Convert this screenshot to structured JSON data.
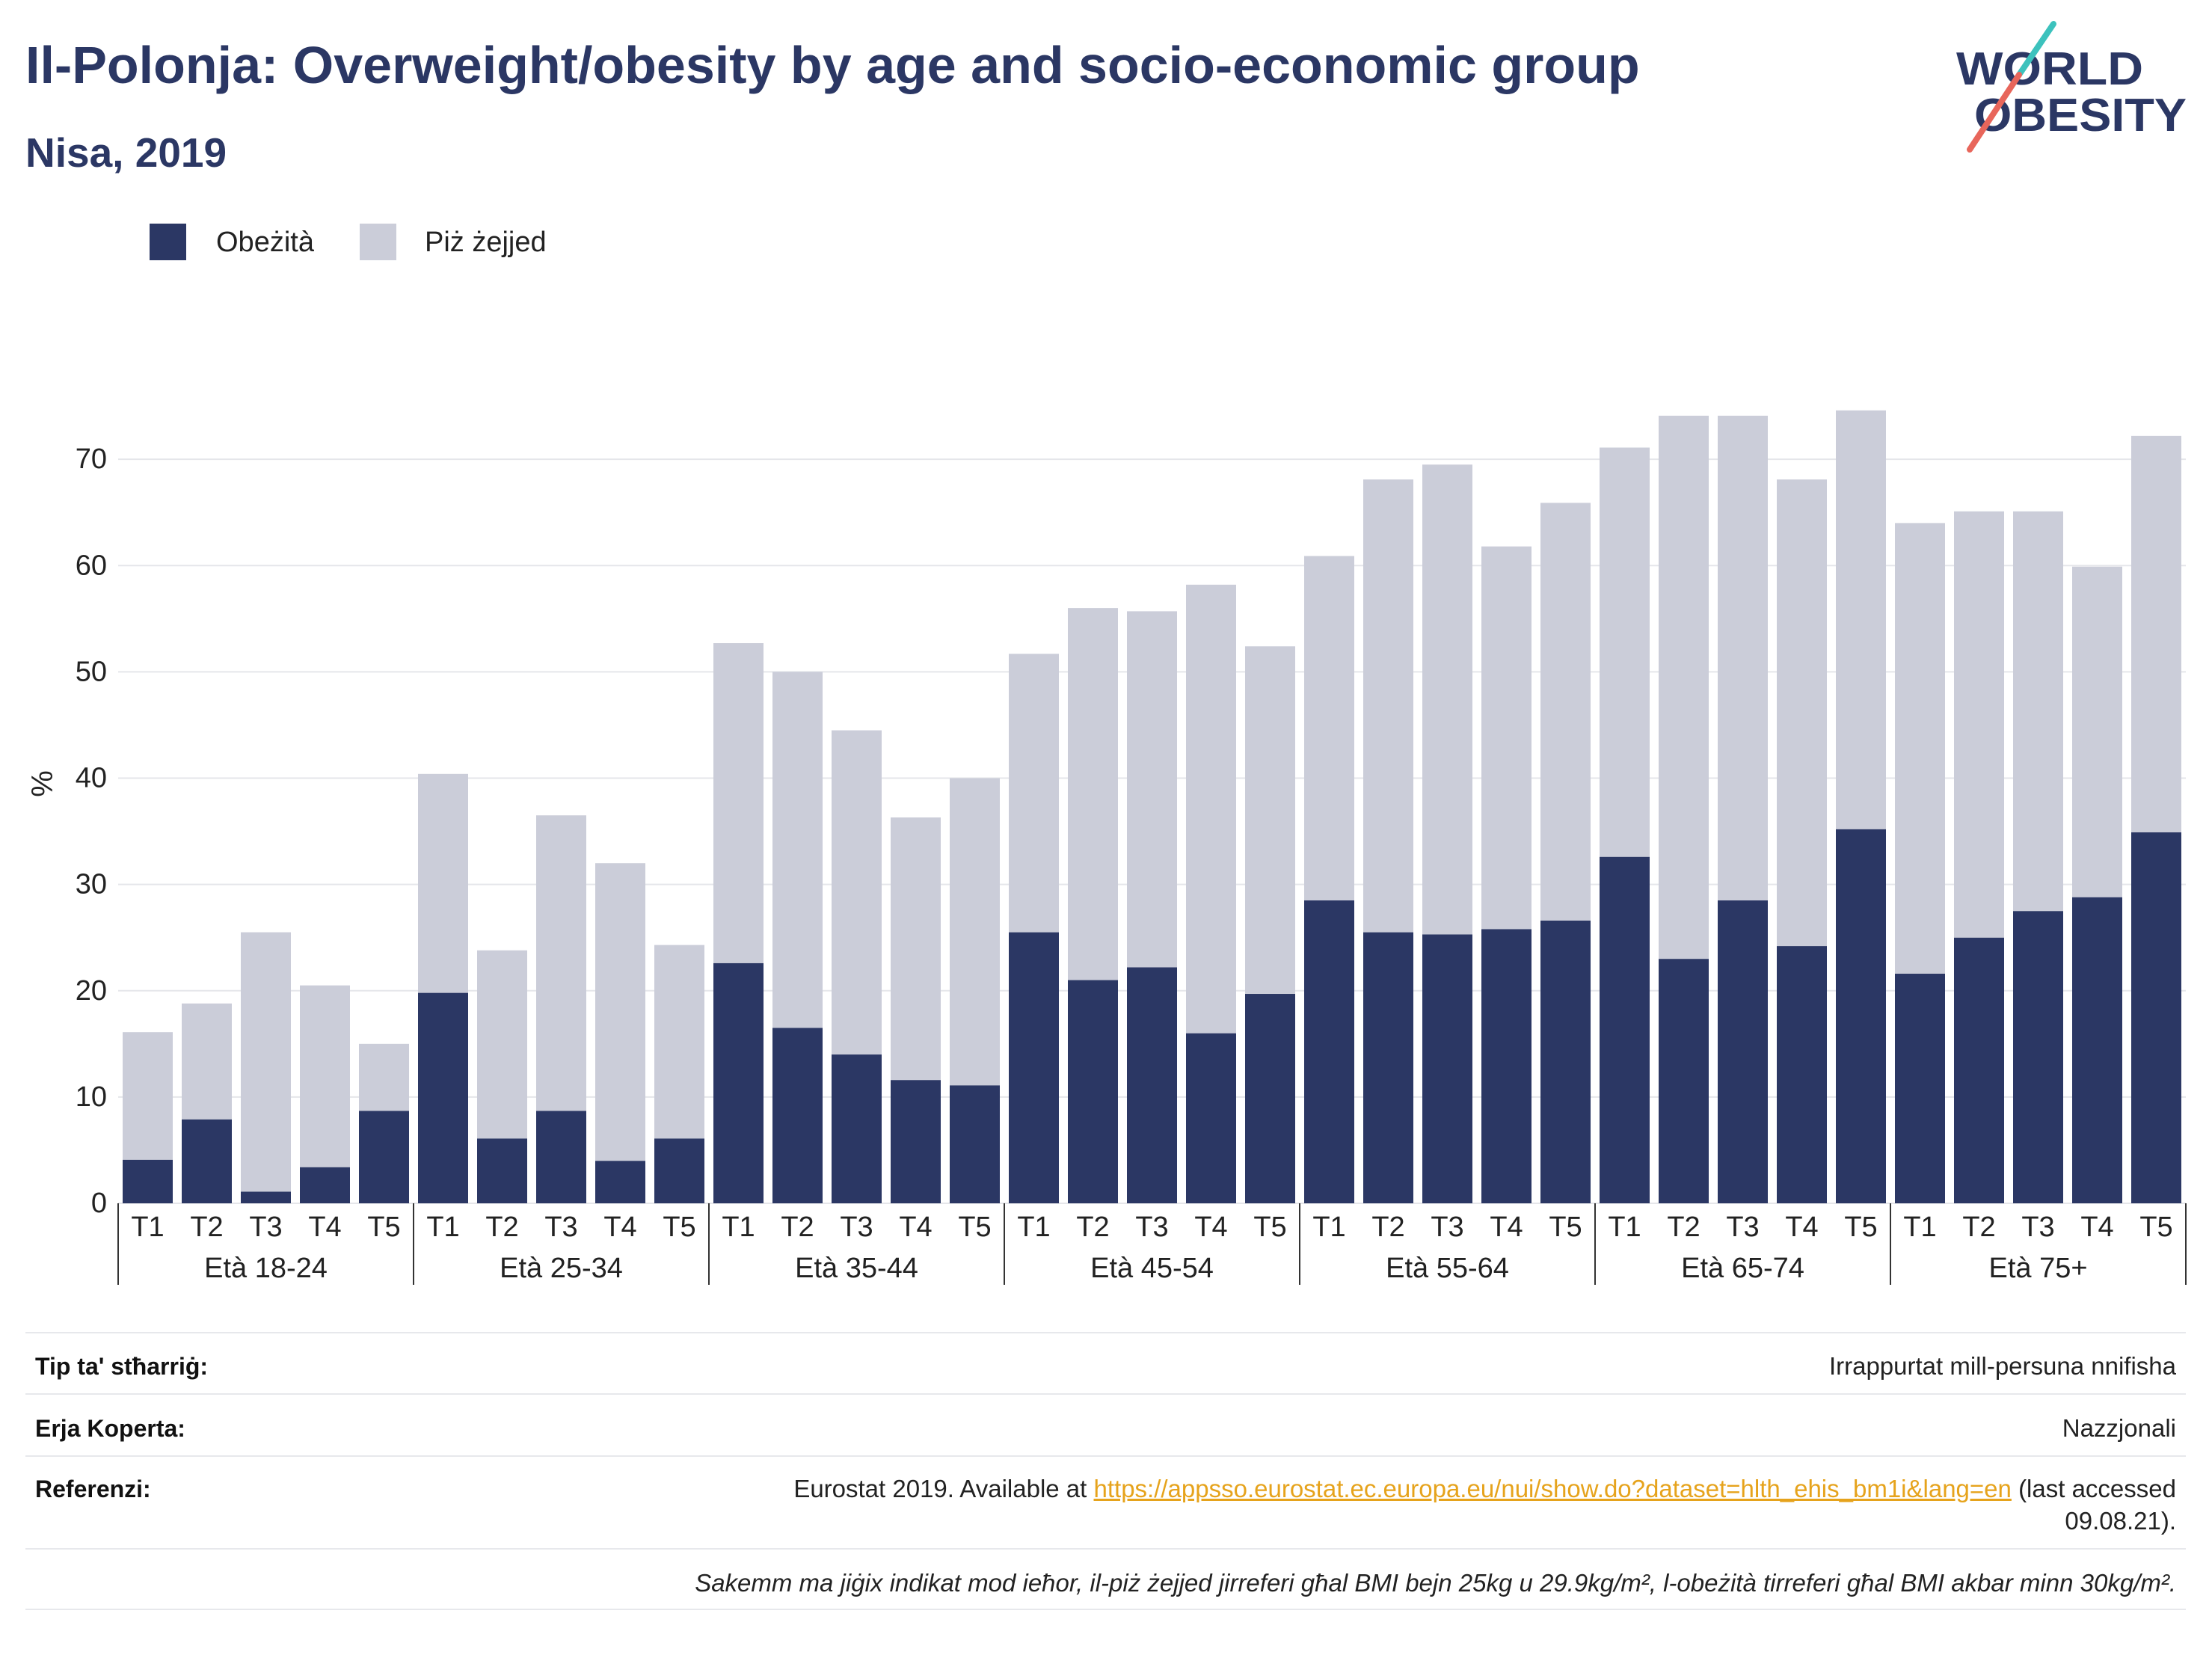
{
  "logo": {
    "line1": "WORLD",
    "line2": "OBESITY"
  },
  "colors": {
    "navy": "#2b3764",
    "gray": "#cbcdd9",
    "link": "#e6a31c",
    "logo_slash_top": "#3cc2bd",
    "logo_slash_bottom": "#e8665b"
  },
  "chart_data": {
    "type": "bar",
    "stacked": true,
    "title": "Il-Polonja: Overweight/obesity by age and socio-economic group",
    "subtitle": "Nisa, 2019",
    "xlabel": "",
    "ylabel": "%",
    "ylim": [
      0,
      80
    ],
    "yticks": [
      0,
      10,
      20,
      30,
      40,
      50,
      60,
      70
    ],
    "grid": true,
    "legend": "top-left",
    "groups": [
      "Età 18-24",
      "Età 25-34",
      "Età 35-44",
      "Età 45-54",
      "Età 55-64",
      "Età 65-74",
      "Età 75+"
    ],
    "categories": [
      "T1",
      "T2",
      "T3",
      "T4",
      "T5"
    ],
    "series": [
      {
        "name": "Obeżità",
        "color": "#2b3764",
        "values": [
          [
            4.1,
            7.9,
            1.1,
            3.4,
            8.7
          ],
          [
            19.8,
            6.1,
            8.7,
            4.0,
            6.1
          ],
          [
            22.6,
            16.5,
            14.0,
            11.6,
            11.1
          ],
          [
            25.5,
            21.0,
            22.2,
            16.0,
            19.7
          ],
          [
            28.5,
            25.5,
            25.3,
            25.8,
            26.6
          ],
          [
            32.6,
            23.0,
            28.5,
            24.2,
            35.2
          ],
          [
            21.6,
            25.0,
            27.5,
            28.8,
            34.9
          ]
        ]
      },
      {
        "name": "Piż żejjed",
        "color": "#cbcdd9",
        "values": [
          [
            12.0,
            10.9,
            24.4,
            17.1,
            6.3
          ],
          [
            20.6,
            17.7,
            27.8,
            28.0,
            18.2
          ],
          [
            30.1,
            33.5,
            30.5,
            24.7,
            28.9
          ],
          [
            26.2,
            35.0,
            33.5,
            42.2,
            32.7
          ],
          [
            32.4,
            42.6,
            44.2,
            36.0,
            39.3
          ],
          [
            38.5,
            51.1,
            45.6,
            43.9,
            39.4
          ],
          [
            42.4,
            40.1,
            37.6,
            31.1,
            37.3
          ]
        ]
      }
    ]
  },
  "info": {
    "survey_type": {
      "label": "Tip ta' stħarriġ:",
      "value": "Irrappurtat mill-persuna nnifisha"
    },
    "coverage": {
      "label": "Erja Koperta:",
      "value": "Nazzjonali"
    },
    "references": {
      "label": "Referenzi:",
      "prefix": "Eurostat 2019. Available at",
      "link": "https://appsso.eurostat.ec.europa.eu/nui/show.do?dataset=hlth_ehis_bm1i&lang=en",
      "suffix": "(last accessed",
      "suffix_cont": "09.08.21)."
    },
    "note": "Sakemm ma jiġix indikat mod ieħor, il-piż żejjed jirreferi għal BMI bejn 25kg u 29.9kg/m², l-obeżità tirreferi għal BMI akbar minn 30kg/m²."
  }
}
